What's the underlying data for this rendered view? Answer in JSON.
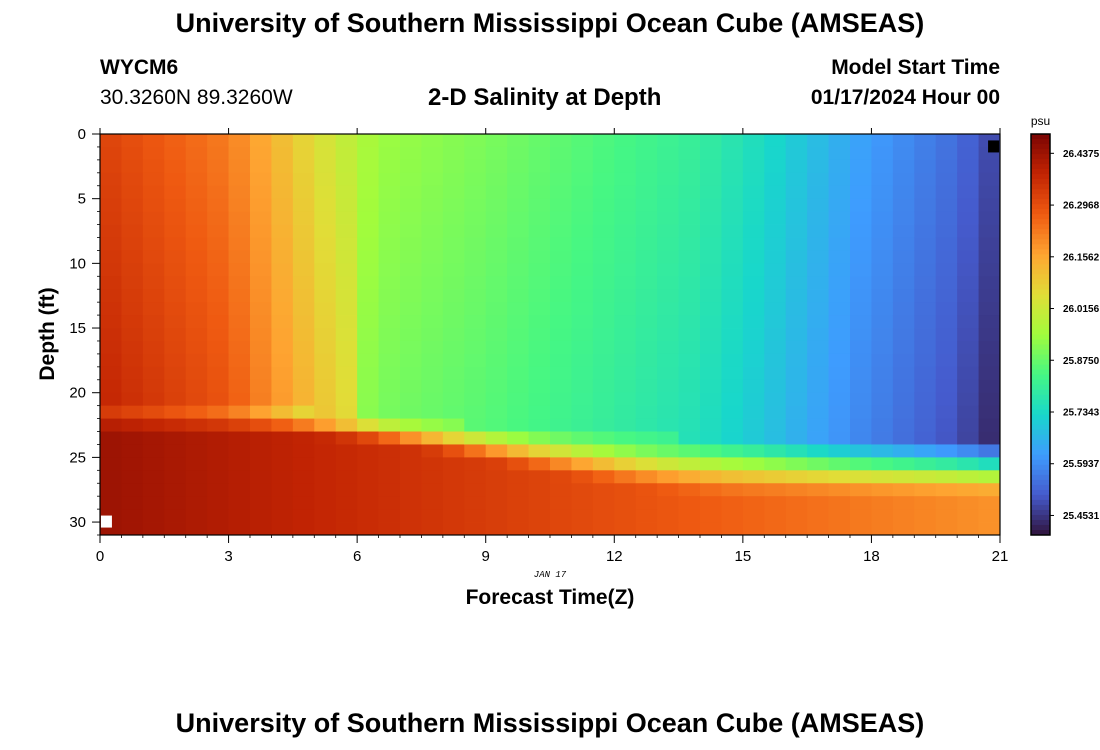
{
  "header": {
    "title": "University of Southern Mississippi Ocean Cube (AMSEAS)",
    "station_id": "WYCM6",
    "coordinates": "30.3260N  89.3260W",
    "chart_title": "2-D Salinity at Depth",
    "start_label": "Model Start Time",
    "start_value": "01/17/2024 Hour 00"
  },
  "footer": {
    "title": "University of Southern Mississippi Ocean Cube (AMSEAS)"
  },
  "chart_data": {
    "type": "heatmap",
    "title": "2-D Salinity at Depth",
    "xlabel": "Forecast Time(Z)",
    "ylabel": "Depth (ft)",
    "x_date_label": "JAN 17",
    "xlim": [
      0,
      21
    ],
    "ylim": [
      31,
      0
    ],
    "x_ticks": [
      0,
      3,
      6,
      9,
      12,
      15,
      18,
      21
    ],
    "y_ticks": [
      0,
      5,
      10,
      15,
      20,
      25,
      30
    ],
    "colorbar": {
      "unit": "psu",
      "min": 25.4,
      "max": 26.49,
      "ticks": [
        "26.4375",
        "26.2968",
        "26.1562",
        "26.0156",
        "25.8750",
        "25.7343",
        "25.5937",
        "25.4531"
      ]
    },
    "markers": [
      {
        "name": "max-marker",
        "x": 20.85,
        "y": 1,
        "color": "#000000"
      },
      {
        "name": "min-marker",
        "x": 0.15,
        "y": 30,
        "color": "#ffffff"
      }
    ]
  }
}
